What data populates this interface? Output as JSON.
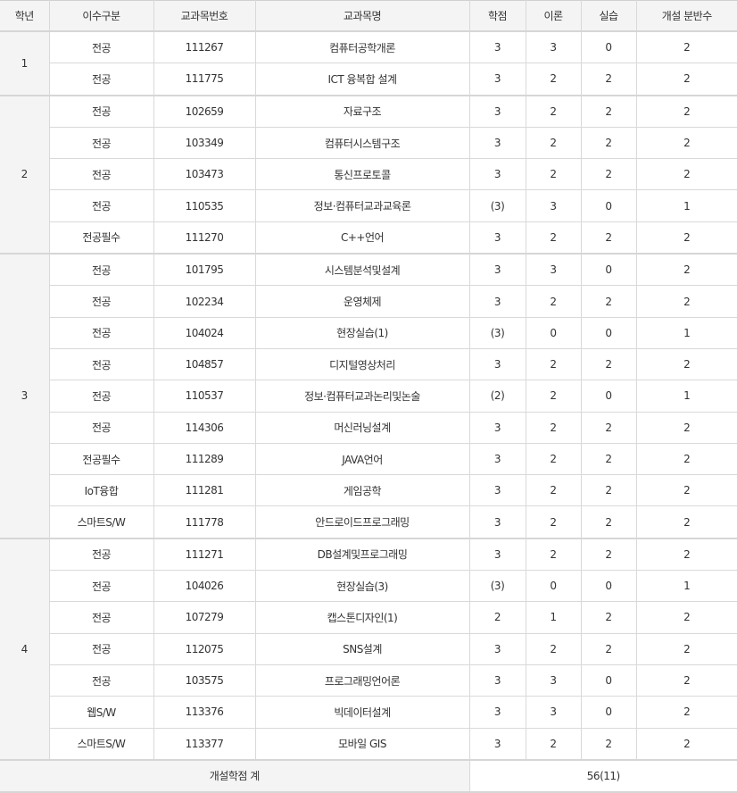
{
  "headers": [
    "학년",
    "이수구분",
    "교과목번호",
    "교과목명",
    "학점",
    "이론",
    "실습",
    "개설 분반수"
  ],
  "groups": [
    {
      "year": "1",
      "rows": [
        [
          "전공",
          "111267",
          "컴퓨터공학개론",
          "3",
          "3",
          "0",
          "2"
        ],
        [
          "전공",
          "111775",
          "ICT 융복합 설계",
          "3",
          "2",
          "2",
          "2"
        ]
      ]
    },
    {
      "year": "2",
      "rows": [
        [
          "전공",
          "102659",
          "자료구조",
          "3",
          "2",
          "2",
          "2"
        ],
        [
          "전공",
          "103349",
          "컴퓨터시스템구조",
          "3",
          "2",
          "2",
          "2"
        ],
        [
          "전공",
          "103473",
          "통신프로토콜",
          "3",
          "2",
          "2",
          "2"
        ],
        [
          "전공",
          "110535",
          "정보·컴퓨터교과교육론",
          "(3)",
          "3",
          "0",
          "1"
        ],
        [
          "전공필수",
          "111270",
          "C++언어",
          "3",
          "2",
          "2",
          "2"
        ]
      ]
    },
    {
      "year": "3",
      "rows": [
        [
          "전공",
          "101795",
          "시스템분석및설계",
          "3",
          "3",
          "0",
          "2"
        ],
        [
          "전공",
          "102234",
          "운영체제",
          "3",
          "2",
          "2",
          "2"
        ],
        [
          "전공",
          "104024",
          "현장실습(1)",
          "(3)",
          "0",
          "0",
          "1"
        ],
        [
          "전공",
          "104857",
          "디지털영상처리",
          "3",
          "2",
          "2",
          "2"
        ],
        [
          "전공",
          "110537",
          "정보·컴퓨터교과논리및논술",
          "(2)",
          "2",
          "0",
          "1"
        ],
        [
          "전공",
          "114306",
          "머신러닝설계",
          "3",
          "2",
          "2",
          "2"
        ],
        [
          "전공필수",
          "111289",
          "JAVA언어",
          "3",
          "2",
          "2",
          "2"
        ],
        [
          "IoT융합",
          "111281",
          "게임공학",
          "3",
          "2",
          "2",
          "2"
        ],
        [
          "스마트S/W",
          "111778",
          "안드로이드프로그래밍",
          "3",
          "2",
          "2",
          "2"
        ]
      ]
    },
    {
      "year": "4",
      "rows": [
        [
          "전공",
          "111271",
          "DB설계및프로그래밍",
          "3",
          "2",
          "2",
          "2"
        ],
        [
          "전공",
          "104026",
          "현장실습(3)",
          "(3)",
          "0",
          "0",
          "1"
        ],
        [
          "전공",
          "107279",
          "캡스톤디자인(1)",
          "2",
          "1",
          "2",
          "2"
        ],
        [
          "전공",
          "112075",
          "SNS설계",
          "3",
          "2",
          "2",
          "2"
        ],
        [
          "전공",
          "103575",
          "프로그래밍언어론",
          "3",
          "3",
          "0",
          "2"
        ],
        [
          "웹S/W",
          "113376",
          "빅데이터설계",
          "3",
          "3",
          "0",
          "2"
        ],
        [
          "스마트S/W",
          "113377",
          "모바일 GIS",
          "3",
          "2",
          "2",
          "2"
        ]
      ]
    }
  ],
  "total": {
    "label": "개설학점 계",
    "value": "56(11)"
  }
}
